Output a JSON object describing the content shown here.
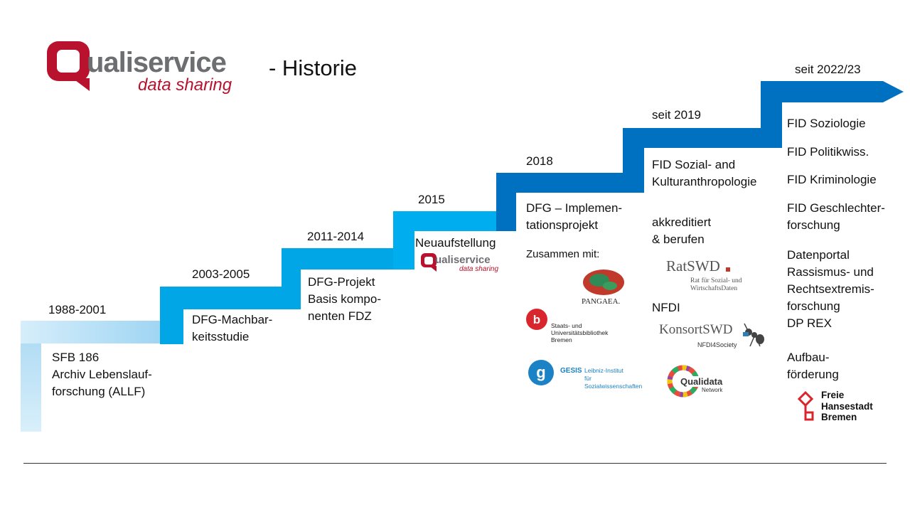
{
  "header": {
    "logo_word": "ualiservice",
    "logo_tagline": "data sharing",
    "title": "- Historie"
  },
  "colors": {
    "step_light": "#a8d8f2",
    "step_mid": "#00a6e6",
    "step_dark": "#0070c0",
    "brand_red": "#b8122e"
  },
  "stages": [
    {
      "year": "1988-2001",
      "text": "SFB 186\nArchiv Lebenslauf-\nforschung (ALLF)"
    },
    {
      "year": "2003-2005",
      "text": "DFG-Machbar-\nkeitsstudie"
    },
    {
      "year": "2011-2014",
      "text": "DFG-Projekt\nBasis kompo-\nnenten FDZ"
    },
    {
      "year": "2015",
      "text": "Neuaufstellung"
    },
    {
      "year": "2018",
      "text": "DFG – Implemen-\ntationsprojekt",
      "together": "Zusammen mit:"
    },
    {
      "year": "seit 2019",
      "text": "FID Sozial- and\nKulturanthropologie",
      "accredited": "akkreditiert\n& berufen",
      "nfdi": "NFDI"
    },
    {
      "year": "seit 2022/23",
      "items": [
        "FID Soziologie",
        "FID Politikwiss.",
        "FID Kriminologie",
        "FID Geschlechter-\nforschung",
        "Datenportal\nRassismus- und\nRechtsextremis-\nforschung\nDP REX",
        "Aufbau-\nförderung"
      ]
    }
  ],
  "partner_logos": {
    "pangaea": "PANGAEA.",
    "suub": "Staats- und\nUniversitätsbibliothek\nBremen",
    "gesis_name": "GESIS",
    "gesis_text": "Leibniz-Institut\nfür Sozialwissenschaften",
    "ratswd": "RatSWD",
    "ratswd_sub": "Rat für Sozial- und\nWirtschaftsDaten",
    "konsort": "KonsortSWD",
    "konsort_sub": "NFDI4Society",
    "qualidata": "Qualidata",
    "qualidata_sub": "Network",
    "bremen": "Freie\nHansestadt\nBremen"
  }
}
